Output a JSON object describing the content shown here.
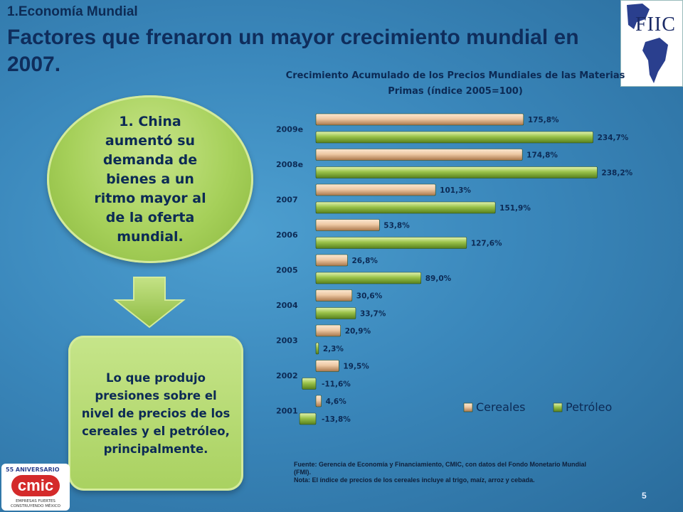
{
  "header": {
    "section": "1.Economía Mundial",
    "title": "Factores que frenaron un mayor crecimiento mundial en 2007."
  },
  "logos": {
    "fiic": "FIIC",
    "cmic_anniversary": "55 ANIVERSARIO",
    "cmic_name": "cmic",
    "cmic_tagline": "EMPRESAS FUERTES CONSTRUYENDO MÉXICO"
  },
  "bubble": {
    "text": "1. China aumentó su demanda de bienes a un ritmo mayor al de la oferta mundial."
  },
  "result_box": {
    "text": "Lo que produjo presiones sobre el nivel de precios de los cereales y el petróleo, principalmente."
  },
  "chart_data": {
    "type": "bar",
    "orientation": "horizontal",
    "title": "Crecimiento Acumulado de los Precios Mundiales de las Materias Primas (índice 2005=100)",
    "categories": [
      "2009e",
      "2008e",
      "2007",
      "2006",
      "2005",
      "2004",
      "2003",
      "2002",
      "2001"
    ],
    "series": [
      {
        "name": "Cereales",
        "color": "#eec9a4",
        "values": [
          175.8,
          174.8,
          101.3,
          53.8,
          26.8,
          30.6,
          20.9,
          19.5,
          4.6
        ],
        "labels": [
          "175,8%",
          "174,8%",
          "101,3%",
          "53,8%",
          "26,8%",
          "30,6%",
          "20,9%",
          "19,5%",
          "4,6%"
        ]
      },
      {
        "name": "Petróleo",
        "color": "#9ac24a",
        "values": [
          234.7,
          238.2,
          151.9,
          127.6,
          89.0,
          33.7,
          2.3,
          -11.6,
          -13.8
        ],
        "labels": [
          "234,7%",
          "238,2%",
          "151,9%",
          "127,6%",
          "89,0%",
          "33,7%",
          "2,3%",
          "-11,6%",
          "-13,8%"
        ]
      }
    ],
    "legend": "bottom-right",
    "grid": false
  },
  "footer": {
    "source": "Fuente: Gerencia de Economía y Financiamiento, CMIC, con datos del Fondo Monetario Mundial (FMI).",
    "note": "Nota: El índice de precios de los cereales incluye al trigo, maíz, arroz y cebada.",
    "page": "5"
  }
}
